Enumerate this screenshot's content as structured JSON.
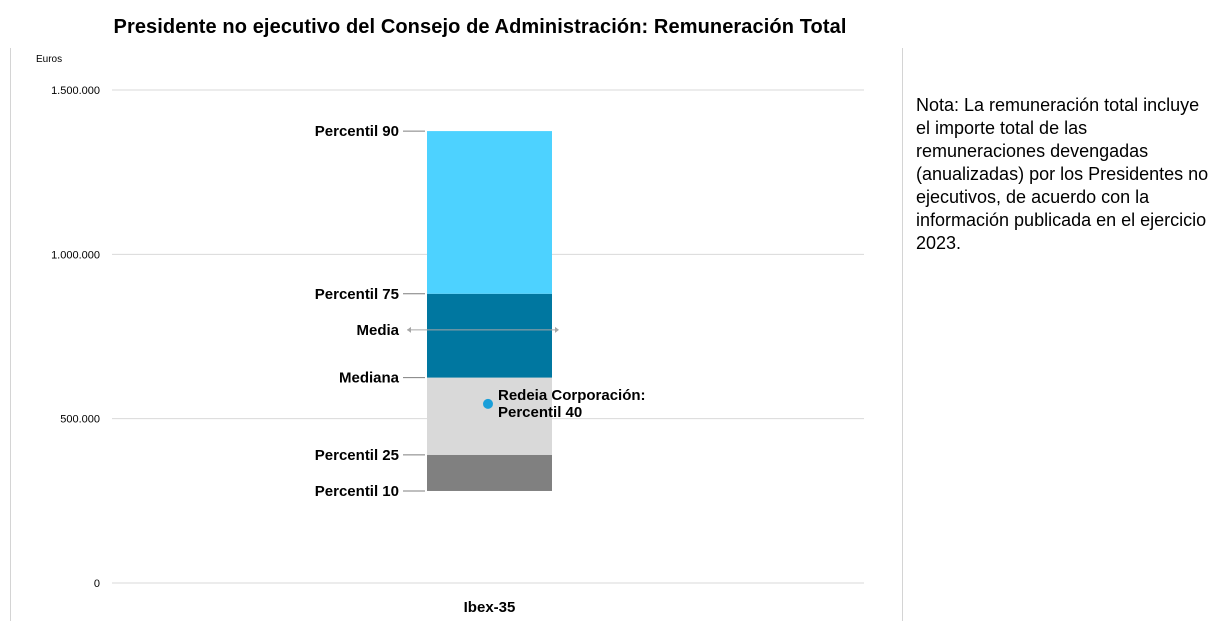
{
  "chart_data": {
    "type": "bar",
    "title": "Presidente no ejecutivo del Consejo de Administración: Remuneración Total",
    "ylabel": "Euros",
    "ylim": [
      0,
      1500000
    ],
    "yticks": [
      {
        "value": 0,
        "label": "0"
      },
      {
        "value": 500000,
        "label": "500.000"
      },
      {
        "value": 1000000,
        "label": "1.000.000"
      },
      {
        "value": 1500000,
        "label": "1.500.000"
      }
    ],
    "grid": true,
    "categories": [
      "Ibex-35"
    ],
    "percentiles": [
      {
        "name": "Percentil 10",
        "value": 280000
      },
      {
        "name": "Percentil 25",
        "value": 390000
      },
      {
        "name": "Mediana",
        "value": 625000
      },
      {
        "name": "Media",
        "value": 770000
      },
      {
        "name": "Percentil 75",
        "value": 880000
      },
      {
        "name": "Percentil 90",
        "value": 1375000
      }
    ],
    "segments": [
      {
        "from": 280000,
        "to": 390000,
        "color": "#808080"
      },
      {
        "from": 390000,
        "to": 625000,
        "color": "#d9d9d9"
      },
      {
        "from": 625000,
        "to": 880000,
        "color": "#0077a0"
      },
      {
        "from": 880000,
        "to": 1375000,
        "color": "#4dd2ff"
      }
    ],
    "company": {
      "label_line1": "Redeia Corporación:",
      "label_line2": "Percentil 40",
      "value": 545000,
      "color": "#1a9fd9"
    }
  },
  "note": "Nota: La remuneración total incluye el importe total de las remuneraciones devengadas (anualizadas) por los Presidentes no ejecutivos, de acuerdo con la información publicada en el ejercicio 2023."
}
